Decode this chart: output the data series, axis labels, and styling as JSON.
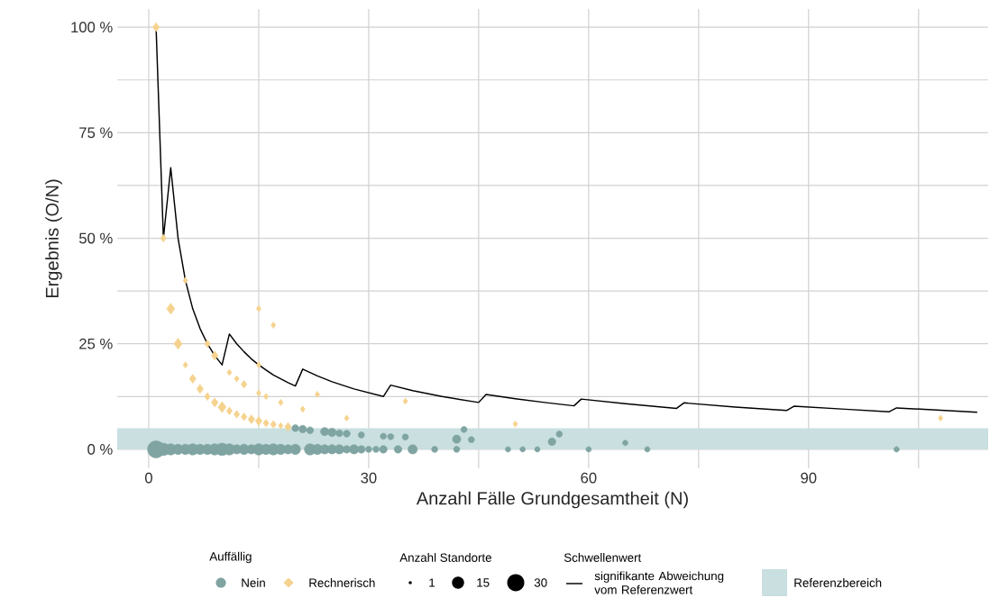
{
  "chart_data": {
    "type": "bubble",
    "xlabel": "Anzahl Fälle Grundgesamtheit (N)",
    "ylabel": "Ergebnis (O/N)",
    "legend_title": "Auffällig",
    "annotations": [
      "Anzahl Standorte",
      "Schwellenwert"
    ],
    "xlim": [
      -4.3,
      114.5
    ],
    "ylim": [
      -4.5,
      104.3
    ],
    "xticks": [
      0,
      {
        "value": 15,
        "label": null
      },
      30,
      {
        "value": 45,
        "label": null
      },
      60,
      {
        "value": 75,
        "label": null
      },
      90,
      {
        "value": 105,
        "label": null
      }
    ],
    "yticks": [
      {
        "value": 0,
        "label": "0 %"
      },
      {
        "value": 12.5,
        "label": null
      },
      {
        "value": 25,
        "label": "25 %"
      },
      {
        "value": 37.5,
        "label": null
      },
      {
        "value": 50,
        "label": "50 %"
      },
      {
        "value": 62.5,
        "label": null
      },
      {
        "value": 75,
        "label": "75 %"
      },
      {
        "value": 87.5,
        "label": null
      },
      {
        "value": 100,
        "label": "100 %"
      }
    ],
    "grid": true,
    "legend": "bottom",
    "size_legend": [
      1,
      15,
      30
    ],
    "bands": [
      {
        "axis": "y",
        "from": 0,
        "to": 5,
        "label": "Referenzbereich",
        "color": "#c9dfe0"
      }
    ],
    "series": [
      {
        "name": "Nein",
        "marker": "circle",
        "color": "#7fa4a2",
        "x": [
          1,
          2,
          3,
          4,
          5,
          6,
          7,
          8,
          9,
          10,
          11,
          12,
          13,
          14,
          15,
          16,
          17,
          18,
          19,
          20,
          22,
          23,
          24,
          25,
          26,
          27,
          28,
          29,
          30,
          31,
          32,
          34,
          36,
          39,
          42,
          49,
          51,
          53,
          60,
          68,
          102,
          20,
          21,
          22,
          24,
          25,
          26,
          27,
          29,
          32,
          33,
          35,
          42,
          43,
          44,
          55,
          56,
          65
        ],
        "values": [
          0,
          0,
          0,
          0,
          0,
          0,
          0,
          0,
          0,
          0,
          0,
          0,
          0,
          0,
          0,
          0,
          0,
          0,
          0,
          0,
          0,
          0,
          0,
          0,
          0,
          0,
          0,
          0,
          0,
          0,
          0,
          0,
          0,
          0,
          0,
          0,
          0,
          0,
          0,
          0,
          0,
          5,
          4.8,
          4.5,
          4.2,
          4,
          3.8,
          3.7,
          3.4,
          3.1,
          3,
          2.9,
          2.4,
          4.7,
          2.3,
          1.8,
          3.6,
          1.5
        ],
        "sizes": [
          30,
          16,
          13,
          11,
          11,
          13,
          11,
          11,
          13,
          16,
          13,
          9,
          11,
          9,
          13,
          11,
          13,
          11,
          9,
          11,
          13,
          11,
          9,
          9,
          9,
          6,
          9,
          6,
          4,
          4,
          6,
          6,
          9,
          4,
          4,
          3,
          3,
          3,
          3,
          3,
          3,
          5,
          6,
          5,
          7,
          7,
          5,
          5,
          4,
          4,
          4,
          4,
          7,
          4,
          4,
          6,
          4,
          3
        ]
      },
      {
        "name": "Rechnerisch",
        "marker": "diamond",
        "color": "#f5d38f",
        "x": [
          1,
          2,
          3,
          4,
          5,
          5,
          6,
          7,
          8,
          8,
          9,
          9,
          10,
          11,
          11,
          12,
          12,
          13,
          13,
          14,
          15,
          15,
          15,
          15,
          16,
          16,
          17,
          17,
          18,
          18,
          19,
          21,
          23,
          27,
          35,
          50,
          108
        ],
        "values": [
          100,
          50,
          33.3,
          25,
          40,
          20,
          16.7,
          14.3,
          25,
          12.5,
          22.2,
          11.1,
          10,
          18.2,
          9.1,
          16.7,
          8.3,
          15.4,
          7.7,
          7.1,
          33.3,
          20,
          13.3,
          6.7,
          12.5,
          6.2,
          29.4,
          5.9,
          11.1,
          5.6,
          5.3,
          9.5,
          13,
          7.4,
          11.4,
          6,
          7.4
        ],
        "sizes": [
          4,
          3,
          6,
          6,
          2,
          2,
          4,
          4,
          3,
          3,
          4,
          4,
          6,
          2,
          3,
          2,
          3,
          3,
          3,
          4,
          2,
          2,
          2,
          4,
          2,
          3,
          2,
          3,
          2,
          2,
          4,
          2,
          2,
          2,
          2,
          2,
          2
        ]
      },
      {
        "name": "signifikante Abweichung vom Referenzwert",
        "type": "line",
        "color": "#000000",
        "line_style": "solid",
        "x": [
          1,
          2,
          3,
          4,
          5,
          6,
          7,
          8,
          9,
          10,
          11,
          12,
          13,
          14,
          15,
          16,
          17,
          18,
          19,
          20,
          21,
          23,
          25,
          28,
          32,
          33,
          36,
          40,
          45,
          46,
          50,
          54,
          58,
          59,
          65,
          72,
          73,
          80,
          87,
          88,
          95,
          101,
          102,
          113
        ],
        "values": [
          100,
          50,
          66.7,
          50,
          40,
          33.3,
          28.6,
          25,
          22.2,
          20,
          27.3,
          25,
          23.1,
          21.4,
          20,
          18.8,
          17.6,
          16.7,
          15.8,
          15,
          19,
          17.4,
          16,
          14.3,
          12.5,
          15.2,
          13.9,
          12.5,
          11.1,
          13,
          12,
          11.1,
          10.3,
          11.9,
          10.8,
          9.7,
          11,
          10,
          9.2,
          10.2,
          9.5,
          8.9,
          9.8,
          8.8
        ]
      }
    ]
  }
}
